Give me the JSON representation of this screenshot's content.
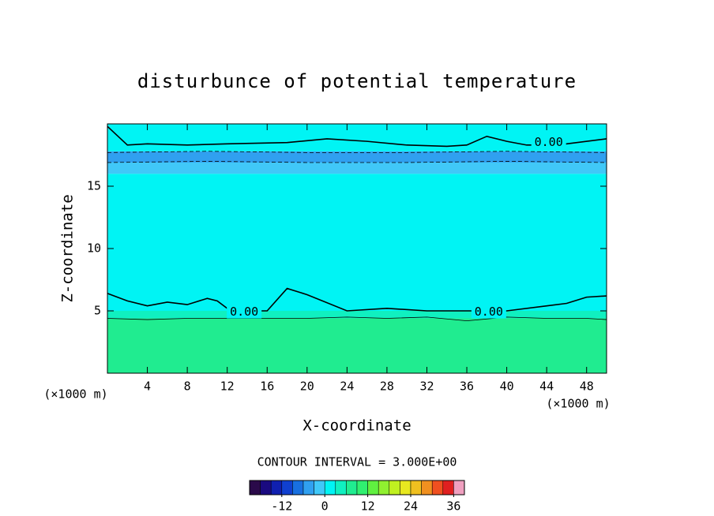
{
  "chart_data": {
    "type": "contour",
    "title": "disturbunce of potential temperature",
    "x_label": "X-coordinate",
    "y_label": "Z-coordinate",
    "x_units": "(×1000 m)",
    "xlim": [
      0,
      50
    ],
    "ylim": [
      0,
      20
    ],
    "xticks": [
      4,
      8,
      12,
      16,
      20,
      24,
      28,
      32,
      36,
      40,
      44,
      48
    ],
    "yticks": [
      5,
      10,
      15
    ],
    "field_bands": [
      {
        "z": [
          0,
          4.4
        ],
        "value": 7.5
      },
      {
        "z": [
          4.4,
          5
        ],
        "value": 4.5
      },
      {
        "z": [
          5,
          16
        ],
        "value": 1.5
      },
      {
        "z": [
          16,
          16.9
        ],
        "value": -1.5
      },
      {
        "z": [
          16.9,
          17.8
        ],
        "value": -4.5
      },
      {
        "z": [
          17.8,
          20
        ],
        "value": 1.5
      }
    ],
    "contours": [
      {
        "level": 0,
        "x": [
          0,
          1,
          2,
          4,
          6,
          8,
          10,
          11,
          12,
          14,
          16,
          18,
          20,
          24,
          28,
          32,
          36,
          40,
          44,
          46,
          48,
          50
        ],
        "y": [
          6.4,
          6.1,
          5.8,
          5.4,
          5.7,
          5.5,
          6.0,
          5.8,
          5.2,
          5.0,
          5.0,
          6.8,
          6.3,
          5.0,
          5.2,
          5.0,
          5.0,
          5.0,
          5.4,
          5.6,
          6.1,
          6.2
        ]
      },
      {
        "level": 0,
        "x": [
          0,
          2,
          4,
          8,
          12,
          18,
          22,
          26,
          30,
          34,
          36,
          38,
          40,
          42,
          44,
          46,
          50
        ],
        "y": [
          19.8,
          18.3,
          18.4,
          18.3,
          18.4,
          18.5,
          18.8,
          18.6,
          18.3,
          18.2,
          18.3,
          19.0,
          18.6,
          18.3,
          18.3,
          18.4,
          18.8
        ]
      },
      {
        "level": -3,
        "x": [
          0,
          10,
          20,
          30,
          40,
          50
        ],
        "y": [
          17.7,
          17.8,
          17.7,
          17.7,
          17.8,
          17.7
        ]
      },
      {
        "level": -3,
        "x": [
          0,
          10,
          20,
          30,
          40,
          50
        ],
        "y": [
          16.9,
          17.0,
          16.9,
          16.9,
          17.0,
          16.9
        ]
      },
      {
        "level": 3,
        "x": [
          0,
          4,
          8,
          12,
          16,
          20,
          24,
          28,
          32,
          36,
          40,
          44,
          48,
          50
        ],
        "y": [
          4.4,
          4.3,
          4.4,
          4.4,
          4.4,
          4.4,
          4.5,
          4.4,
          4.5,
          4.2,
          4.5,
          4.4,
          4.4,
          4.3
        ]
      }
    ],
    "contour_labels": [
      {
        "value": 0,
        "label": "0.00",
        "x": 13.7,
        "y": 4.9
      },
      {
        "value": 0,
        "label": "0.00",
        "x": 38.2,
        "y": 4.9
      },
      {
        "value": 0,
        "label": "0.00",
        "x": 44.2,
        "y": 18.5
      }
    ],
    "contour_interval_text": "CONTOUR INTERVAL = 3.000E+00",
    "colorbar": {
      "levels": [
        -21,
        -18,
        -15,
        -12,
        -9,
        -6,
        -3,
        0,
        3,
        6,
        9,
        12,
        15,
        18,
        21,
        24,
        27,
        30,
        33,
        36,
        39
      ],
      "colors": [
        "#2a0a4a",
        "#1a0a80",
        "#1020b0",
        "#1040d0",
        "#1870e0",
        "#30a0f0",
        "#40c8f8",
        "#00f4f4",
        "#10f0c0",
        "#20ec90",
        "#30f070",
        "#60f040",
        "#90f030",
        "#c0f020",
        "#e8e820",
        "#f0c020",
        "#f09020",
        "#f05020",
        "#e02020",
        "#f0a0c0"
      ],
      "ticks": [
        -12,
        0,
        12,
        24,
        36
      ]
    }
  }
}
